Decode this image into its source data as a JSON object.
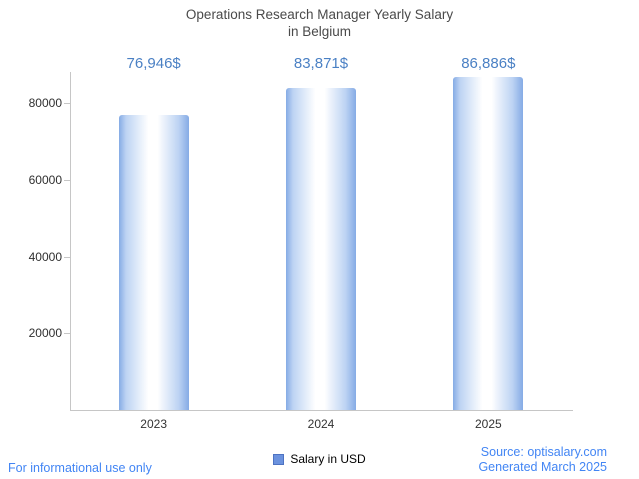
{
  "title": {
    "line1": "Operations Research Manager Yearly Salary",
    "line2": "in Belgium"
  },
  "chart_data": {
    "type": "bar",
    "title": "Operations Research Manager Yearly Salary in Belgium",
    "categories": [
      "2023",
      "2024",
      "2025"
    ],
    "values": [
      76946,
      83871,
      86886
    ],
    "value_labels": [
      "76,946$",
      "83,871$",
      "86,886$"
    ],
    "series": [
      {
        "name": "Salary in USD",
        "values": [
          76946,
          83871,
          86886
        ]
      }
    ],
    "xlabel": "",
    "ylabel": "",
    "y_ticks": [
      20000,
      40000,
      60000,
      80000
    ],
    "ylim": [
      0,
      90000
    ],
    "grid": false,
    "legend_position": "bottom"
  },
  "legend": {
    "label": "Salary in USD",
    "swatch_color": "#6b92de",
    "swatch_border": "#4e73c2"
  },
  "footer": {
    "left": "For informational use only",
    "source": "Source: optisalary.com",
    "generated": "Generated March 2025"
  },
  "colors": {
    "accent": "#4285f4",
    "value_label": "#4a80c4",
    "bar_edge": "#85abe5",
    "bar_mid": "#bdd3f3",
    "bar_center": "#ffffff",
    "axis": "#c6c6c6"
  }
}
